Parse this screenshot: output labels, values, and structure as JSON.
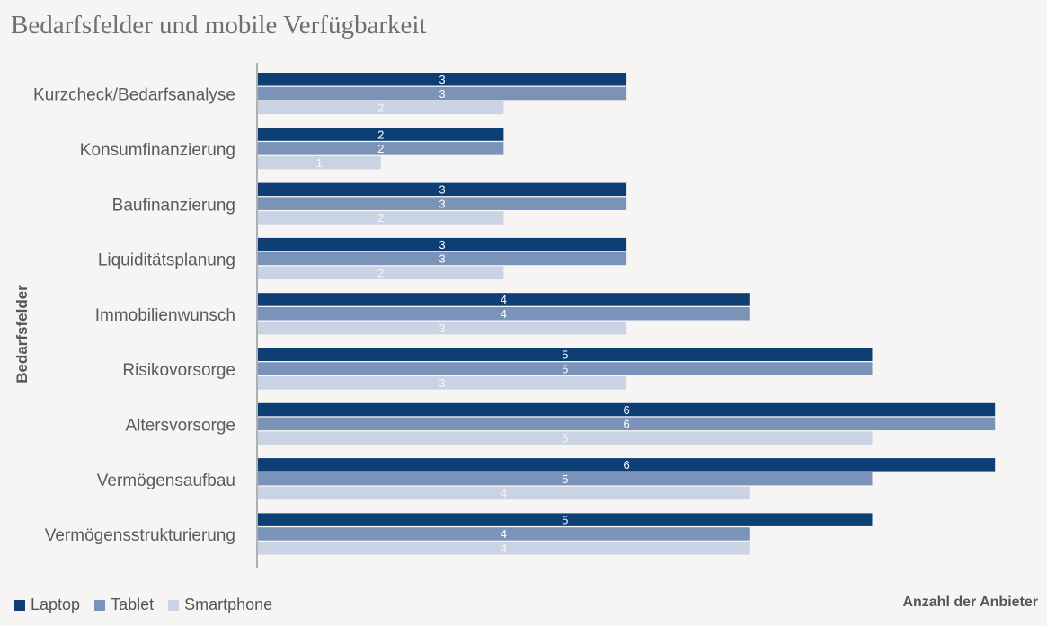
{
  "chart_data": {
    "type": "bar",
    "orientation": "horizontal",
    "title": "Bedarfsfelder und mobile Verfügbarkeit",
    "ylabel": "Bedarfsfelder",
    "xlabel": "Anzahl der Anbieter",
    "categories": [
      "Kurzcheck/Bedarfsanalyse",
      "Konsumfinanzierung",
      "Baufinanzierung",
      "Liquiditätsplanung",
      "Immobilienwunsch",
      "Risikovorsorge",
      "Altersvorsorge",
      "Vermögensaufbau",
      "Vermögensstrukturierung"
    ],
    "series": [
      {
        "name": "Laptop",
        "color": "#0d3f74",
        "values": [
          3,
          2,
          3,
          3,
          4,
          5,
          6,
          6,
          5
        ]
      },
      {
        "name": "Tablet",
        "color": "#7b93b8",
        "values": [
          3,
          2,
          3,
          3,
          4,
          5,
          6,
          5,
          4
        ]
      },
      {
        "name": "Smartphone",
        "color": "#c9d3e3",
        "values": [
          2,
          1,
          2,
          2,
          3,
          3,
          5,
          4,
          4
        ]
      }
    ],
    "xlim": [
      0,
      6
    ],
    "grid": false,
    "legend_position": "bottom-left"
  }
}
